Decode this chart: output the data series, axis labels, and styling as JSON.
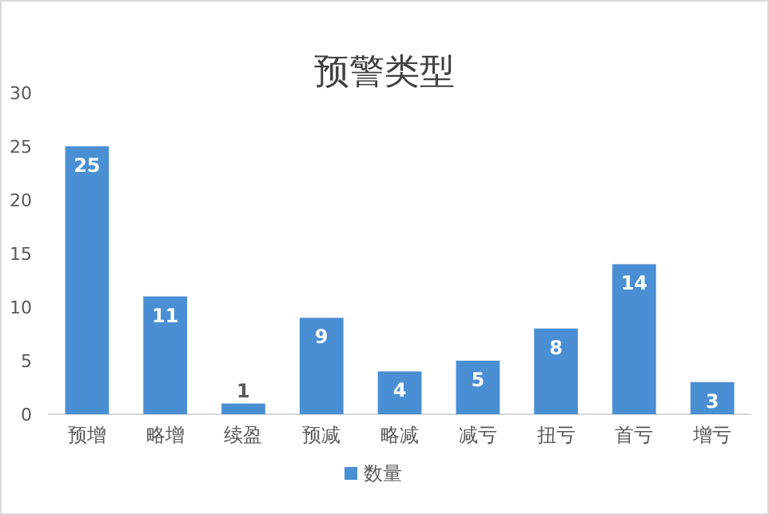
{
  "chart_data": {
    "type": "bar",
    "title": "预警类型",
    "categories": [
      "预增",
      "略增",
      "续盈",
      "预减",
      "略减",
      "减亏",
      "扭亏",
      "首亏",
      "增亏"
    ],
    "series": [
      {
        "name": "数量",
        "color": "#4a8fd4",
        "values": [
          25,
          11,
          1,
          9,
          4,
          5,
          8,
          14,
          3
        ]
      }
    ],
    "ylim": [
      0,
      30
    ],
    "yticks": [
      0,
      5,
      10,
      15,
      20,
      25,
      30
    ],
    "data_labels": true,
    "legend": "bottom"
  }
}
